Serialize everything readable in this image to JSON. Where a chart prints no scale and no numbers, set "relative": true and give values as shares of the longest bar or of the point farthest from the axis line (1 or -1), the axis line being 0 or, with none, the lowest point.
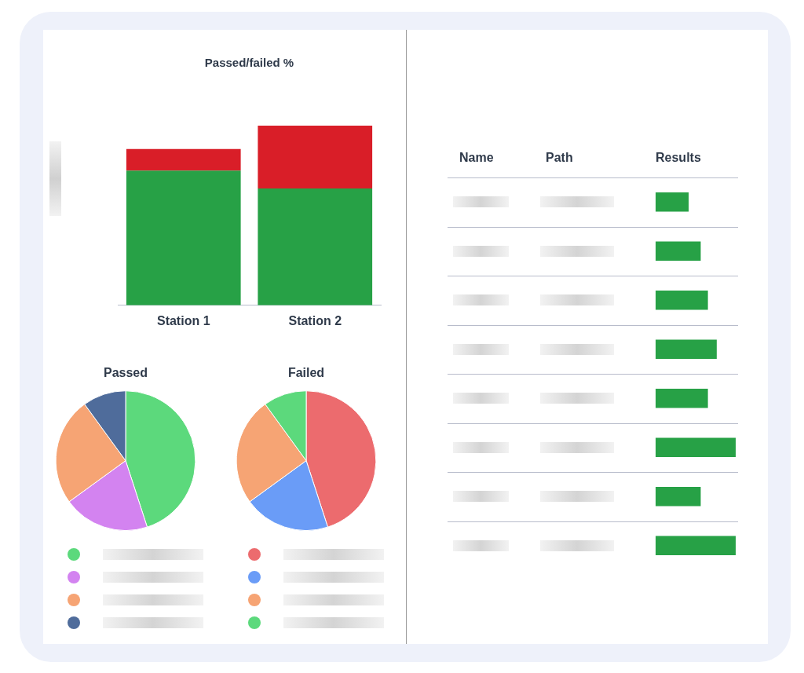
{
  "chart_data": [
    {
      "type": "bar",
      "title": "Passed/failed %",
      "categories": [
        "Station 1",
        "Station 2"
      ],
      "stacked": true,
      "relative": true,
      "series": [
        {
          "color": "#27a146",
          "values": [
            0.75,
            0.65
          ]
        },
        {
          "color": "#d91e28",
          "values": [
            0.12,
            0.35
          ]
        }
      ]
    },
    {
      "type": "pie",
      "title": "Passed",
      "categories": [
        null,
        null,
        null,
        null
      ],
      "values": [
        45,
        20,
        25,
        10
      ],
      "colors": [
        "#5cd97c",
        "#d383f0",
        "#f6a474",
        "#4f6c9b"
      ]
    },
    {
      "type": "pie",
      "title": "Failed",
      "categories": [
        null,
        null,
        null,
        null
      ],
      "values": [
        45,
        20,
        25,
        10
      ],
      "colors": [
        "#ec6b6e",
        "#6a9cf7",
        "#f6a474",
        "#5cd97c"
      ]
    },
    {
      "type": "bar",
      "orientation": "horizontal",
      "relative": true,
      "grid": "y",
      "categories": [
        null,
        null,
        null,
        null,
        null,
        null,
        null,
        null
      ],
      "values": [
        0.41,
        0.56,
        0.65,
        0.76,
        0.65,
        1,
        0.56,
        1
      ],
      "color": "#27a146",
      "annotations": [
        "Name",
        "Path",
        "Results"
      ]
    }
  ]
}
